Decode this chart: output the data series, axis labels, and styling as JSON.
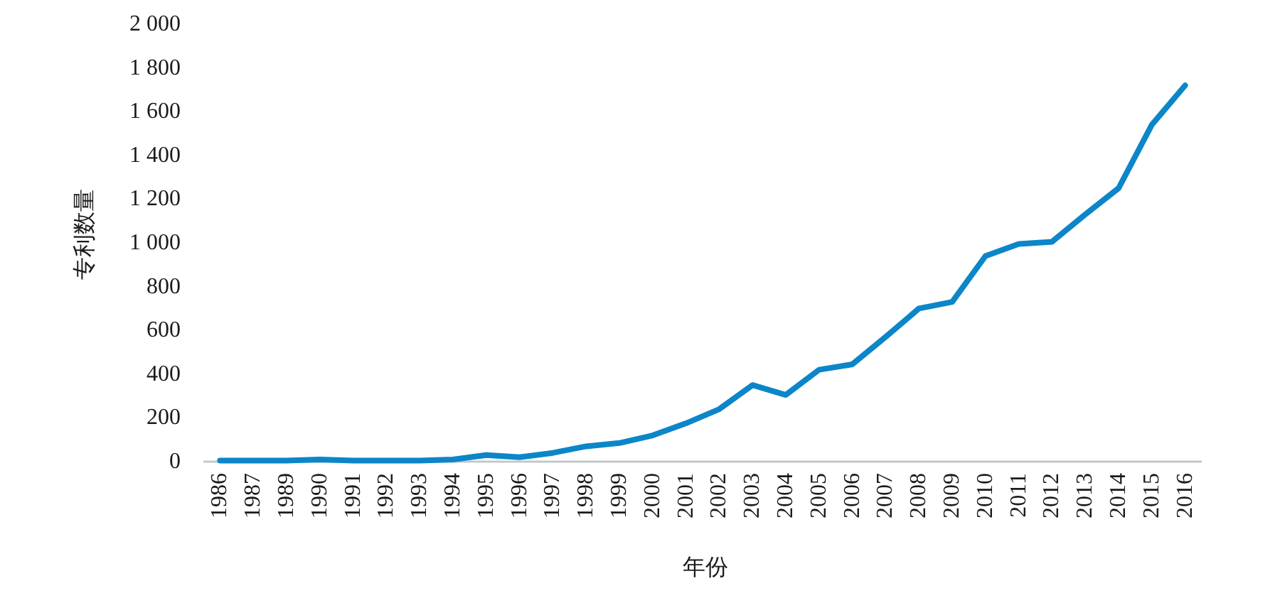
{
  "chart_data": {
    "type": "line",
    "xlabel": "年份",
    "ylabel": "专利数量",
    "categories": [
      "1986",
      "1987",
      "1989",
      "1990",
      "1991",
      "1992",
      "1993",
      "1994",
      "1995",
      "1996",
      "1997",
      "1998",
      "1999",
      "2000",
      "2001",
      "2002",
      "2003",
      "2004",
      "2005",
      "2006",
      "2007",
      "2008",
      "2009",
      "2010",
      "2011",
      "2012",
      "2013",
      "2014",
      "2015",
      "2016"
    ],
    "values": [
      5,
      5,
      5,
      10,
      5,
      5,
      5,
      10,
      30,
      20,
      40,
      70,
      85,
      120,
      175,
      240,
      350,
      305,
      420,
      445,
      570,
      700,
      730,
      940,
      995,
      1005,
      1130,
      1250,
      1540,
      1720
    ],
    "color": "#0b86c8",
    "ylim": [
      0,
      2000
    ],
    "yticks": [
      0,
      200,
      400,
      600,
      800,
      {
        "value": 1000,
        "label": "1 000"
      },
      {
        "value": 1200,
        "label": "1 200"
      },
      {
        "value": 1400,
        "label": "1 400"
      },
      {
        "value": 1600,
        "label": "1 600"
      },
      {
        "value": 1800,
        "label": "1 800"
      },
      {
        "value": 2000,
        "label": "2 000"
      }
    ]
  }
}
